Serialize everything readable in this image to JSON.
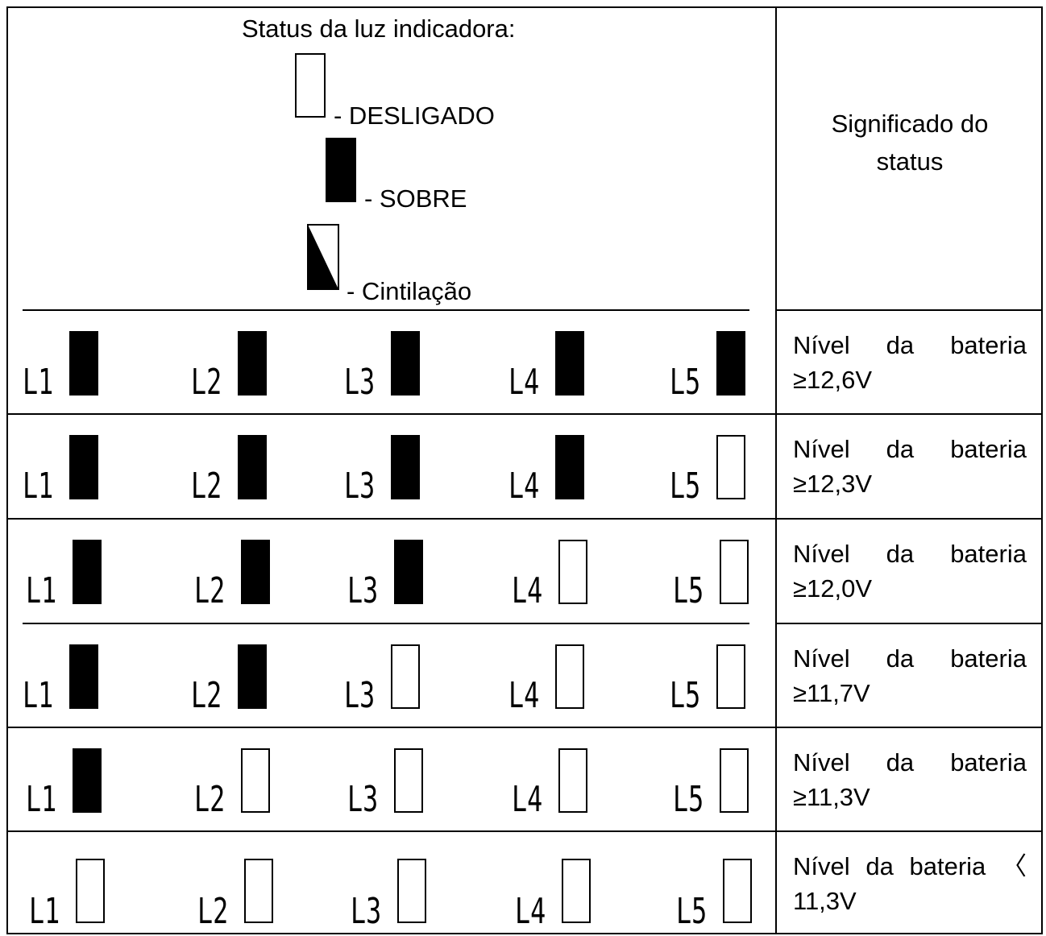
{
  "header": {
    "title": "Status da luz indicadora:",
    "meaning_title": "Significado do status",
    "legend": [
      {
        "state": "off",
        "label": "- DESLIGADO"
      },
      {
        "state": "on",
        "label": "- SOBRE"
      },
      {
        "state": "blink",
        "label": "- Cintilação"
      }
    ]
  },
  "rows": [
    {
      "lamps": [
        {
          "label": "L1",
          "state": "on"
        },
        {
          "label": "L2",
          "state": "on"
        },
        {
          "label": "L3",
          "state": "on"
        },
        {
          "label": "L4",
          "state": "on"
        },
        {
          "label": "L5",
          "state": "on"
        }
      ],
      "meaning_words": [
        "Nível",
        "da",
        "bateria"
      ],
      "meaning_line2": "≥12,6V"
    },
    {
      "lamps": [
        {
          "label": "L1",
          "state": "on"
        },
        {
          "label": "L2",
          "state": "on"
        },
        {
          "label": "L3",
          "state": "on"
        },
        {
          "label": "L4",
          "state": "on"
        },
        {
          "label": "L5",
          "state": "off"
        }
      ],
      "meaning_words": [
        "Nível",
        "da",
        "bateria"
      ],
      "meaning_line2": "≥12,3V"
    },
    {
      "lamps": [
        {
          "label": "L1",
          "state": "on"
        },
        {
          "label": "L2",
          "state": "on"
        },
        {
          "label": "L3",
          "state": "on"
        },
        {
          "label": "L4",
          "state": "off"
        },
        {
          "label": "L5",
          "state": "off"
        }
      ],
      "meaning_words": [
        "Nível",
        "da",
        "bateria"
      ],
      "meaning_line2": "≥12,0V"
    },
    {
      "lamps": [
        {
          "label": "L1",
          "state": "on"
        },
        {
          "label": "L2",
          "state": "on"
        },
        {
          "label": "L3",
          "state": "off"
        },
        {
          "label": "L4",
          "state": "off"
        },
        {
          "label": "L5",
          "state": "off"
        }
      ],
      "meaning_words": [
        "Nível",
        "da",
        "bateria"
      ],
      "meaning_line2": "≥11,7V"
    },
    {
      "lamps": [
        {
          "label": "L1",
          "state": "on"
        },
        {
          "label": "L2",
          "state": "off"
        },
        {
          "label": "L3",
          "state": "off"
        },
        {
          "label": "L4",
          "state": "off"
        },
        {
          "label": "L5",
          "state": "off"
        }
      ],
      "meaning_words": [
        "Nível",
        "da",
        "bateria"
      ],
      "meaning_line2": "≥11,3V"
    },
    {
      "lamps": [
        {
          "label": "L1",
          "state": "off"
        },
        {
          "label": "L2",
          "state": "off"
        },
        {
          "label": "L3",
          "state": "off"
        },
        {
          "label": "L4",
          "state": "off"
        },
        {
          "label": "L5",
          "state": "off"
        }
      ],
      "meaning_words": [
        "Nível",
        "da",
        "bateria",
        "〈"
      ],
      "meaning_line2": "11,3V"
    }
  ]
}
